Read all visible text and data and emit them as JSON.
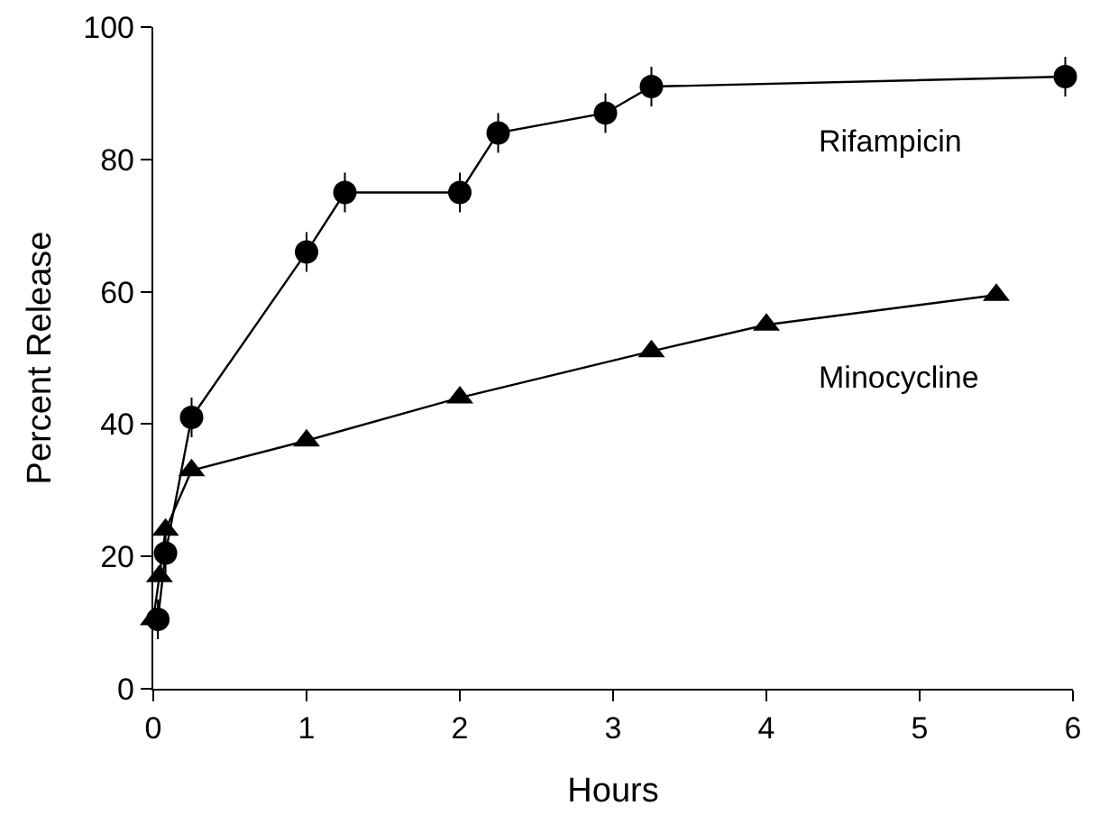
{
  "chart_data": {
    "type": "line",
    "xlabel": "Hours",
    "ylabel": "Percent Release",
    "xlim": [
      0,
      6
    ],
    "xticks": [
      0,
      1,
      2,
      3,
      4,
      5,
      6
    ],
    "ylim": [
      0,
      100
    ],
    "yticks": [
      0,
      20,
      40,
      60,
      80,
      100
    ],
    "grid": false,
    "legend": false,
    "line_style": "solid",
    "series": [
      {
        "name": "Rifampicin",
        "color": "#000000",
        "marker": "circle",
        "x": [
          0.03,
          0.08,
          0.25,
          1,
          1.25,
          2,
          2.25,
          2.95,
          3.25,
          5.95
        ],
        "values": [
          10.5,
          20.5,
          41,
          66,
          75,
          75,
          84,
          87,
          91,
          92.5
        ],
        "errors": [
          3,
          3,
          3,
          3,
          3,
          3,
          3,
          3,
          3,
          3
        ]
      },
      {
        "name": "Minocycline",
        "color": "#000000",
        "marker": "triangle",
        "x": [
          0,
          0.04,
          0.08,
          0.25,
          1,
          2,
          3.25,
          4,
          5.5
        ],
        "values": [
          10.5,
          17,
          24,
          33,
          37.5,
          44,
          51,
          55,
          59.5
        ]
      }
    ]
  }
}
